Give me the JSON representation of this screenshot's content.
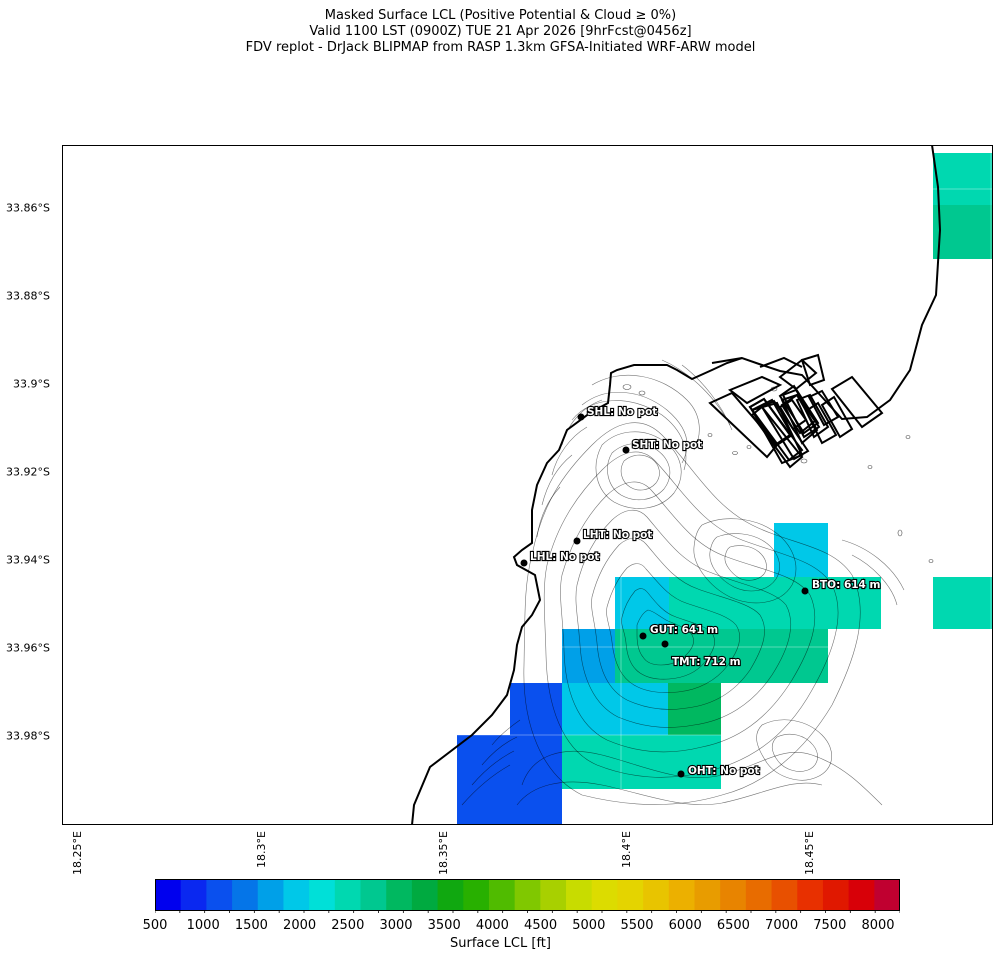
{
  "title": {
    "line1": "Masked Surface LCL (Positive Potential & Cloud ≥ 0%)",
    "line2": "Valid 1100 LST (0900Z) TUE 21 Apr 2026 [9hrFcst@0456z]",
    "line3": "FDV replot - DrJack BLIPMAP from RASP 1.3km GFSA-Initiated WRF-ARW model"
  },
  "axes": {
    "y_ticks": [
      "33.86°S",
      "33.88°S",
      "33.9°S",
      "33.92°S",
      "33.94°S",
      "33.96°S",
      "33.98°S"
    ],
    "x_ticks": [
      "18.25°E",
      "18.3°E",
      "18.35°E",
      "18.4°E",
      "18.45°E"
    ]
  },
  "colorbar": {
    "label": "Surface LCL [ft]",
    "ticks": [
      "500",
      "1000",
      "1500",
      "2000",
      "2500",
      "3000",
      "3500",
      "4000",
      "4500",
      "5000",
      "5500",
      "6000",
      "6500",
      "7000",
      "7500",
      "8000"
    ],
    "colors": [
      "#0000ee",
      "#0a28f0",
      "#0a50ee",
      "#0575e8",
      "#00a0e8",
      "#00c8e8",
      "#00e0d8",
      "#00d8b0",
      "#00c890",
      "#00b860",
      "#00aa40",
      "#10a810",
      "#28b000",
      "#50bb00",
      "#80c800",
      "#a8d000",
      "#c8dc00",
      "#dcdc00",
      "#e4d400",
      "#e8c400",
      "#ecb000",
      "#e89c00",
      "#e88400",
      "#e86c00",
      "#e85000",
      "#e83000",
      "#e01800",
      "#d80008",
      "#c00030"
    ]
  },
  "stations": [
    {
      "code": "SHL",
      "label": "SHL: No pot"
    },
    {
      "code": "SHT",
      "label": "SHT: No pot"
    },
    {
      "code": "LHT",
      "label": "LHT: No pot"
    },
    {
      "code": "LHL",
      "label": "LHL: No pot"
    },
    {
      "code": "BTO",
      "label": "BTO: 614 m"
    },
    {
      "code": "GUT",
      "label": "GUT: 641 m"
    },
    {
      "code": "TMT",
      "label": "TMT: 712 m"
    },
    {
      "code": "OHT",
      "label": "OHT: No pot"
    }
  ],
  "cells": [
    {
      "color": "#00d8b0"
    },
    {
      "color": "#00c890"
    },
    {
      "color": "#00c8e8"
    },
    {
      "color": "#00d8b0"
    },
    {
      "color": "#00d8b0"
    },
    {
      "color": "#00c8e8"
    },
    {
      "color": "#00a0e8"
    },
    {
      "color": "#00c890"
    },
    {
      "color": "#0a50ee"
    },
    {
      "color": "#00c8e8"
    },
    {
      "color": "#00b860"
    },
    {
      "color": "#0a50ee"
    },
    {
      "color": "#00d8b0"
    }
  ]
}
